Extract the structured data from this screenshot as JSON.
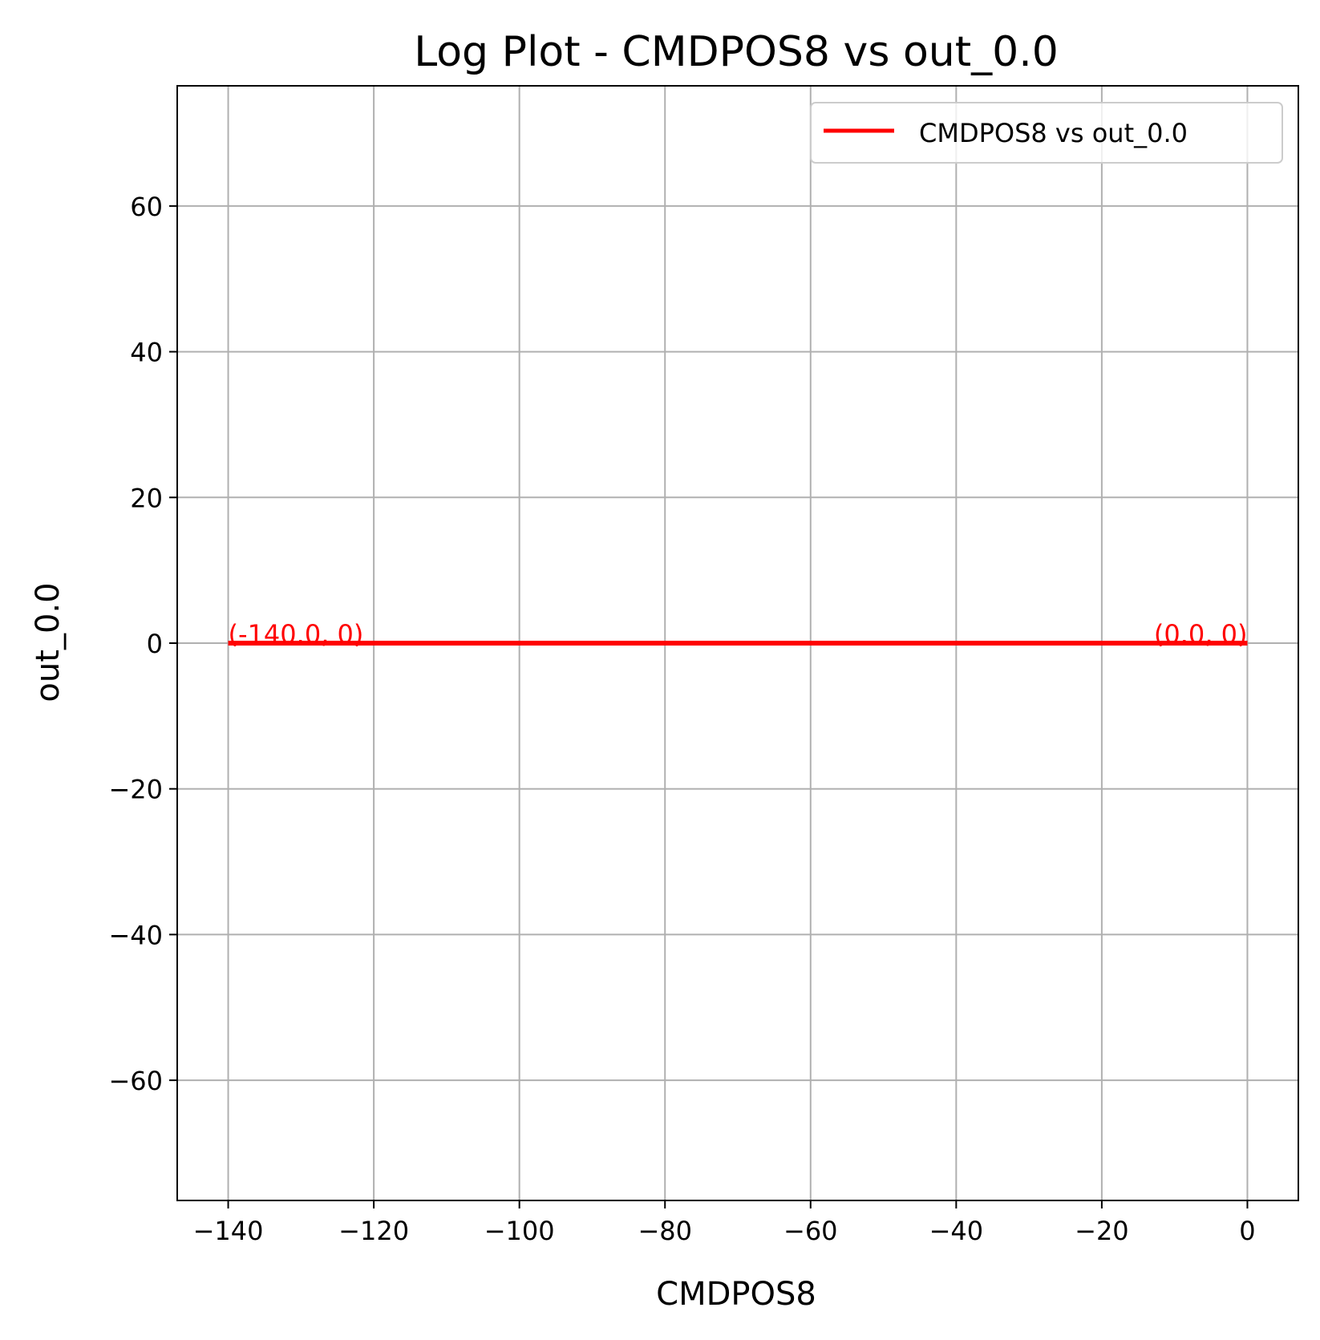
{
  "chart_data": {
    "type": "line",
    "title": "Log Plot - CMDPOS8 vs out_0.0",
    "xlabel": "CMDPOS8",
    "ylabel": "out_0.0",
    "xlim": [
      -147,
      7
    ],
    "ylim": [
      -76.5,
      76.5
    ],
    "x_ticks": [
      -140,
      -120,
      -100,
      -80,
      -60,
      -40,
      -20,
      0
    ],
    "x_tick_labels": [
      "−140",
      "−120",
      "−100",
      "−80",
      "−60",
      "−40",
      "−20",
      "0"
    ],
    "y_ticks": [
      -60,
      -40,
      -20,
      0,
      20,
      40,
      60
    ],
    "y_tick_labels": [
      "−60",
      "−40",
      "−20",
      "0",
      "20",
      "40",
      "60"
    ],
    "grid": true,
    "legend_position": "top-right",
    "series": [
      {
        "name": "CMDPOS8 vs out_0.0",
        "color": "#ff0000",
        "x": [
          -140.0,
          0.0
        ],
        "y": [
          0,
          0
        ]
      }
    ],
    "annotations": [
      {
        "text": "(-140.0, 0)",
        "x": -140.0,
        "y": 0,
        "anchor": "start",
        "color": "#ff0000"
      },
      {
        "text": "(0.0, 0)",
        "x": 0.0,
        "y": 0,
        "anchor": "end",
        "color": "#ff0000"
      }
    ]
  }
}
